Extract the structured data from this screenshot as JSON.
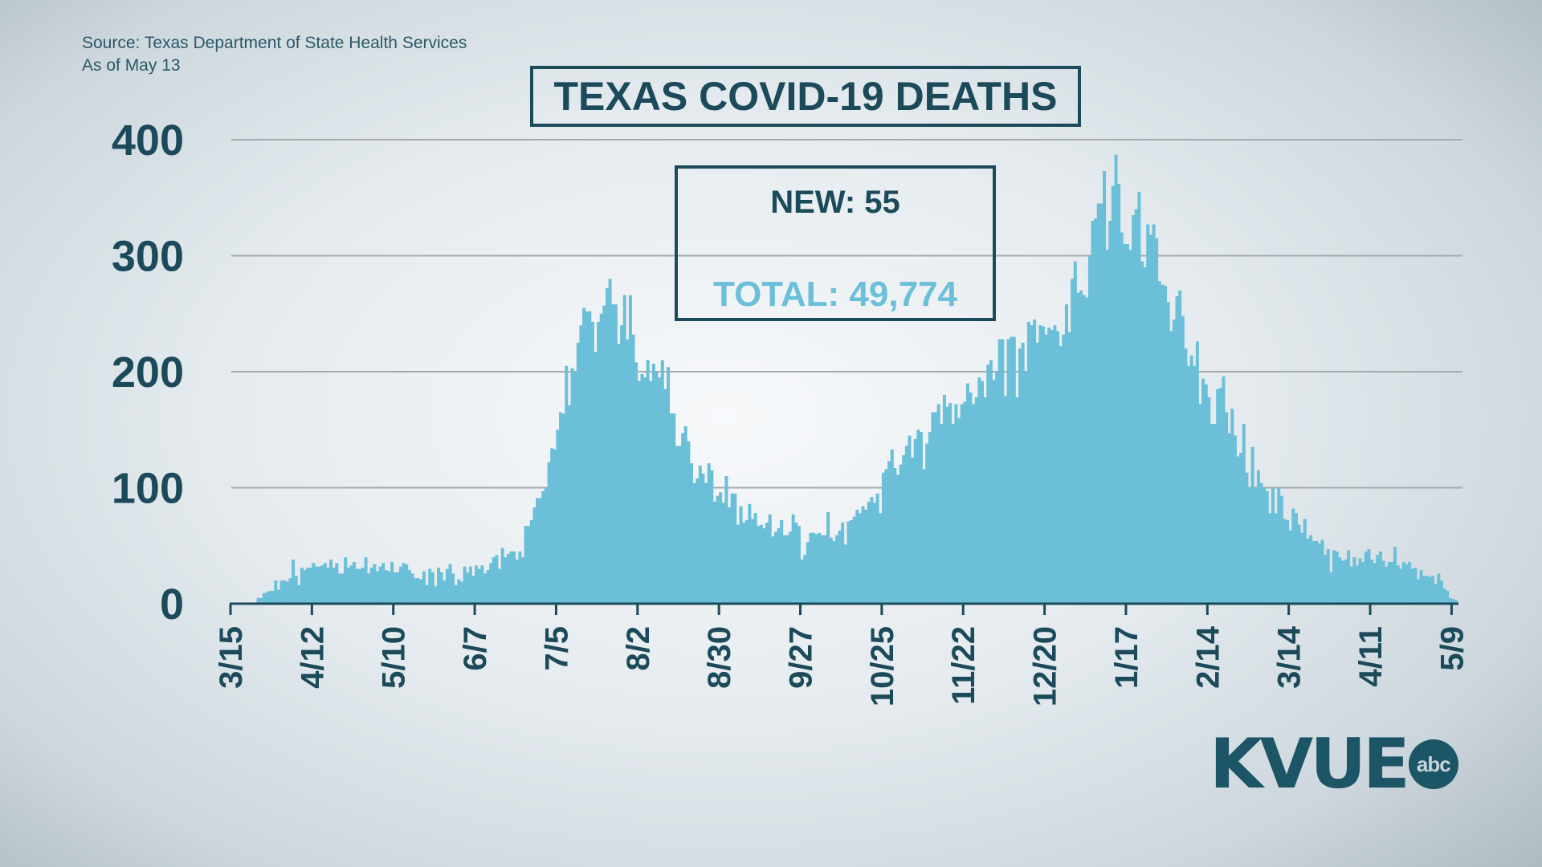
{
  "source_line": "Source: Texas Department of State Health Services",
  "as_of_line": "As of May 13",
  "title": "TEXAS COVID-19 DEATHS",
  "new_label": "NEW: 55",
  "total_label": "TOTAL: 49,774",
  "logo": {
    "text": "KVUE",
    "badge": "abc"
  },
  "colors": {
    "bars": "#6bbfd8",
    "text": "#1b4a5a",
    "grid": "#a5aaae",
    "total": "#6bbfd8"
  },
  "chart_data": {
    "type": "bar",
    "title": "TEXAS COVID-19 DEATHS",
    "xlabel": "",
    "ylabel": "",
    "ylim": [
      0,
      400
    ],
    "y_ticks": [
      "0",
      "100",
      "200",
      "300",
      "400"
    ],
    "x_ticks": [
      "3/15",
      "4/12",
      "5/10",
      "6/7",
      "7/5",
      "8/2",
      "8/30",
      "9/27",
      "10/25",
      "11/22",
      "12/20",
      "1/17",
      "2/14",
      "3/14",
      "4/11",
      "5/9"
    ],
    "grid": true,
    "period": "daily, 3/15 to 5/10",
    "values": [
      0,
      0,
      1,
      1,
      0,
      1,
      1,
      0,
      0,
      5,
      5,
      9,
      10,
      11,
      11,
      20,
      12,
      20,
      20,
      19,
      22,
      38,
      24,
      16,
      31,
      29,
      31,
      31,
      35,
      32,
      32,
      33,
      35,
      31,
      38,
      31,
      35,
      26,
      26,
      40,
      31,
      33,
      36,
      30,
      30,
      31,
      40,
      26,
      31,
      34,
      28,
      32,
      35,
      29,
      28,
      36,
      27,
      27,
      32,
      35,
      34,
      29,
      26,
      22,
      22,
      21,
      28,
      16,
      30,
      27,
      15,
      31,
      27,
      20,
      30,
      34,
      26,
      16,
      21,
      19,
      32,
      27,
      32,
      24,
      33,
      30,
      33,
      26,
      29,
      35,
      40,
      42,
      30,
      48,
      40,
      43,
      45,
      45,
      38,
      45,
      40,
      67,
      67,
      72,
      83,
      91,
      91,
      97,
      100,
      122,
      134,
      133,
      150,
      165,
      164,
      205,
      171,
      203,
      200,
      225,
      240,
      255,
      252,
      252,
      243,
      217,
      243,
      250,
      257,
      272,
      280,
      258,
      258,
      224,
      240,
      266,
      228,
      266,
      232,
      208,
      192,
      198,
      195,
      210,
      192,
      207,
      200,
      195,
      210,
      185,
      204,
      164,
      164,
      136,
      136,
      147,
      153,
      140,
      121,
      104,
      108,
      119,
      112,
      104,
      121,
      115,
      88,
      93,
      96,
      87,
      110,
      83,
      95,
      95,
      68,
      84,
      70,
      72,
      86,
      73,
      78,
      67,
      68,
      65,
      70,
      77,
      58,
      62,
      65,
      72,
      59,
      59,
      62,
      77,
      70,
      67,
      38,
      42,
      53,
      61,
      61,
      60,
      61,
      59,
      59,
      79,
      57,
      54,
      59,
      63,
      70,
      51,
      71,
      72,
      75,
      81,
      78,
      84,
      81,
      88,
      92,
      87,
      95,
      78,
      113,
      116,
      123,
      133,
      117,
      111,
      120,
      128,
      136,
      145,
      126,
      142,
      150,
      148,
      116,
      138,
      148,
      165,
      165,
      172,
      155,
      180,
      170,
      173,
      155,
      172,
      160,
      172,
      174,
      190,
      182,
      172,
      178,
      195,
      192,
      178,
      206,
      210,
      193,
      200,
      228,
      228,
      179,
      228,
      230,
      230,
      178,
      220,
      225,
      200,
      243,
      240,
      245,
      225,
      240,
      239,
      232,
      238,
      236,
      240,
      235,
      222,
      232,
      258,
      234,
      280,
      295,
      268,
      270,
      266,
      264,
      300,
      330,
      332,
      345,
      345,
      373,
      305,
      330,
      360,
      387,
      362,
      320,
      310,
      310,
      305,
      335,
      340,
      355,
      295,
      290,
      327,
      318,
      327,
      315,
      278,
      275,
      274,
      260,
      235,
      245,
      265,
      270,
      248,
      220,
      205,
      214,
      205,
      226,
      172,
      194,
      189,
      178,
      155,
      155,
      185,
      186,
      196,
      165,
      147,
      168,
      145,
      127,
      130,
      155,
      113,
      100,
      135,
      100,
      115,
      104,
      100,
      97,
      78,
      100,
      78,
      100,
      93,
      73,
      72,
      63,
      82,
      78,
      68,
      61,
      73,
      56,
      59,
      54,
      54,
      52,
      55,
      42,
      47,
      27,
      46,
      45,
      40,
      37,
      38,
      46,
      32,
      40,
      33,
      39,
      36,
      45,
      47,
      38,
      35,
      42,
      45,
      37,
      32,
      36,
      36,
      49,
      33,
      30,
      36,
      34,
      36,
      30,
      31,
      21,
      29,
      24,
      24,
      23,
      24,
      17,
      26,
      20,
      13,
      11,
      5,
      4,
      3
    ]
  }
}
